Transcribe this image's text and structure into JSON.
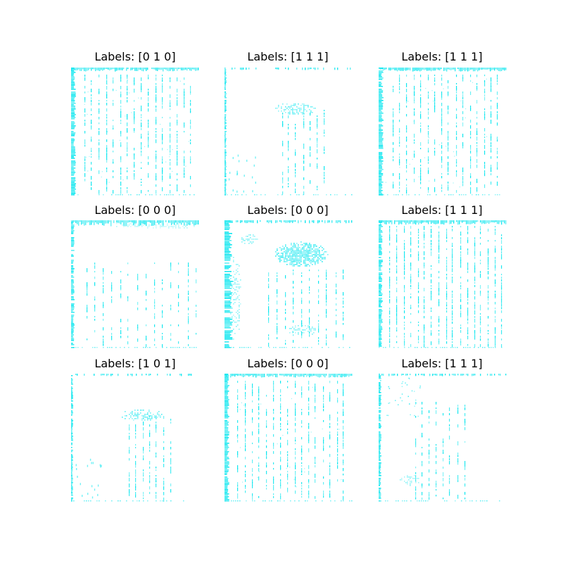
{
  "figure": {
    "background": "#ffffff",
    "accent_color": "#00e5ee",
    "panels": [
      {
        "title": "Labels: [0 1 0]",
        "pattern": "grid-dense-left"
      },
      {
        "title": "Labels: [1 1 1]",
        "pattern": "sparse-center-blob"
      },
      {
        "title": "Labels: [1 1 1]",
        "pattern": "grid-dense-left"
      },
      {
        "title": "Labels: [0 0 0]",
        "pattern": "grid-faint"
      },
      {
        "title": "Labels: [0 0 0]",
        "pattern": "heavy-center-blob"
      },
      {
        "title": "Labels: [1 1 1]",
        "pattern": "grid-full"
      },
      {
        "title": "Labels: [1 0 1]",
        "pattern": "sparse-center-blob"
      },
      {
        "title": "Labels: [0 0 0]",
        "pattern": "grid-dense-left"
      },
      {
        "title": "Labels: [1 1 1]",
        "pattern": "corner-diagonal"
      }
    ]
  }
}
